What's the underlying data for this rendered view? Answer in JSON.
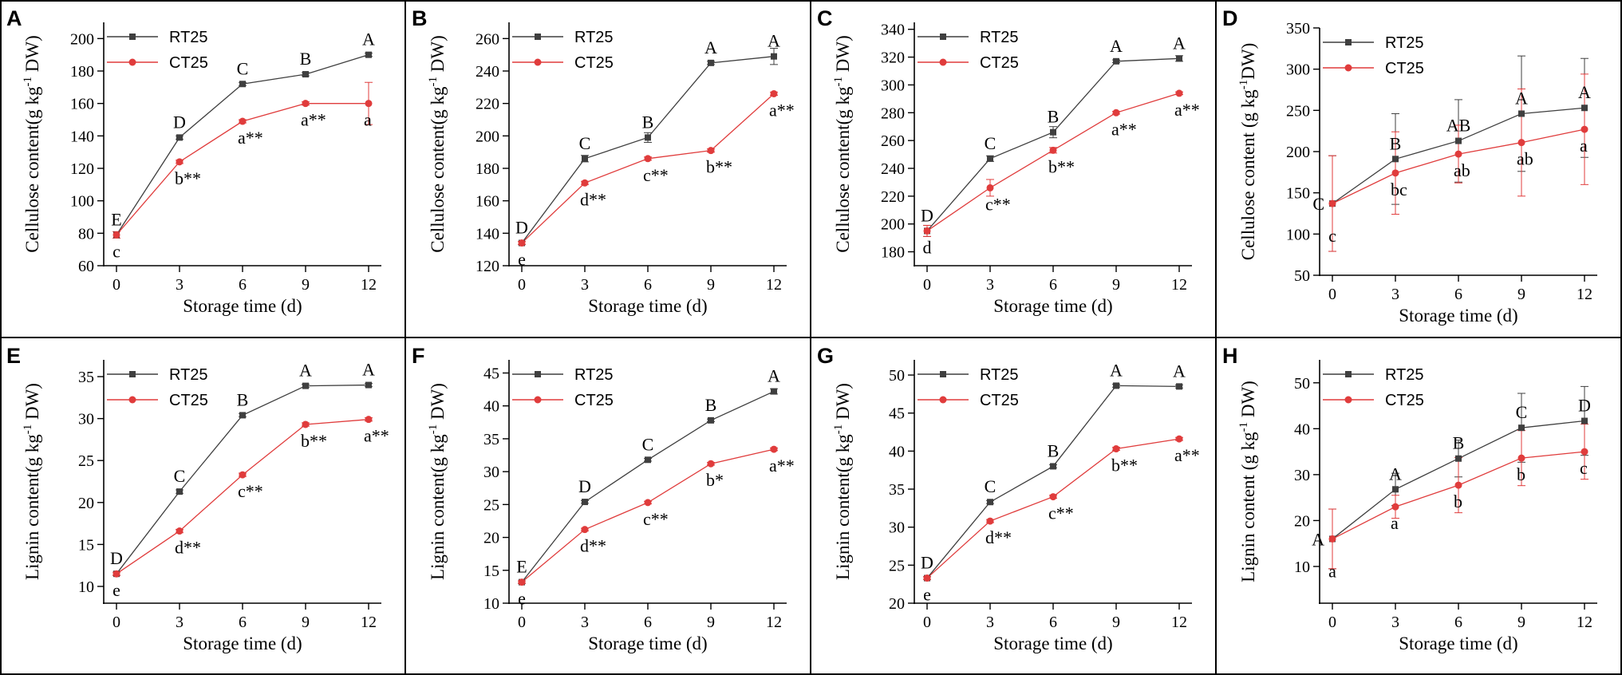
{
  "colors": {
    "rt": "#3f3f3f",
    "ct": "#e03c3c",
    "frame": "#000000"
  },
  "chart_data": [
    {
      "panel": "A",
      "type": "line",
      "xlabel": "Storage time (d)",
      "ylabel_main": "Cellulose content(g kg",
      "ylabel_sup": "-1",
      "ylabel_end": " DW)",
      "x": [
        0,
        3,
        6,
        9,
        12
      ],
      "ylim": [
        60,
        210
      ],
      "yticks": [
        60,
        80,
        100,
        120,
        140,
        160,
        180,
        200
      ],
      "legend": [
        "RT25",
        "CT25"
      ],
      "series": [
        {
          "name": "RT25",
          "values": [
            79,
            139,
            172,
            178,
            190
          ],
          "err": [
            0,
            1,
            1,
            1,
            1
          ],
          "labels": [
            "E",
            "D",
            "C",
            "B",
            "A"
          ]
        },
        {
          "name": "CT25",
          "values": [
            79,
            124,
            149,
            160,
            160
          ],
          "err": [
            2,
            1,
            1,
            1,
            13
          ],
          "labels": [
            "c",
            "b**",
            "a**",
            "a**",
            "a"
          ]
        }
      ]
    },
    {
      "panel": "B",
      "type": "line",
      "xlabel": "Storage time (d)",
      "ylabel_main": "Cellulose content(g kg",
      "ylabel_sup": "-1",
      "ylabel_end": " DW)",
      "x": [
        0,
        3,
        6,
        9,
        12
      ],
      "ylim": [
        120,
        270
      ],
      "yticks": [
        120,
        140,
        160,
        180,
        200,
        220,
        240,
        260
      ],
      "legend": [
        "RT25",
        "CT25"
      ],
      "series": [
        {
          "name": "RT25",
          "values": [
            134,
            186,
            199,
            245,
            249
          ],
          "err": [
            1,
            2,
            3,
            1,
            5
          ],
          "labels": [
            "D",
            "C",
            "B",
            "A",
            "A"
          ]
        },
        {
          "name": "CT25",
          "values": [
            134,
            171,
            186,
            191,
            226
          ],
          "err": [
            1,
            1,
            1,
            1,
            1
          ],
          "labels": [
            "e",
            "d**",
            "c**",
            "b**",
            "a**"
          ]
        }
      ]
    },
    {
      "panel": "C",
      "type": "line",
      "xlabel": "Storage time (d)",
      "ylabel_main": "Cellulose content(g kg",
      "ylabel_sup": "-1",
      "ylabel_end": " DW)",
      "x": [
        0,
        3,
        6,
        9,
        12
      ],
      "ylim": [
        170,
        345
      ],
      "yticks": [
        180,
        200,
        220,
        240,
        260,
        280,
        300,
        320,
        340
      ],
      "legend": [
        "RT25",
        "CT25"
      ],
      "series": [
        {
          "name": "RT25",
          "values": [
            195,
            247,
            266,
            317,
            319
          ],
          "err": [
            4,
            2,
            4,
            1,
            2
          ],
          "labels": [
            "D",
            "C",
            "B",
            "A",
            "A"
          ]
        },
        {
          "name": "CT25",
          "values": [
            195,
            226,
            253,
            280,
            294
          ],
          "err": [
            4,
            6,
            2,
            1,
            1
          ],
          "labels": [
            "d",
            "c**",
            "b**",
            "a**",
            "a**"
          ]
        }
      ]
    },
    {
      "panel": "D",
      "type": "line",
      "xlabel": "Storage time (d)",
      "ylabel_main": "Cellulose content (g kg",
      "ylabel_sup": "-1",
      "ylabel_end": "DW)",
      "x": [
        0,
        3,
        6,
        9,
        12
      ],
      "ylim": [
        50,
        350
      ],
      "yticks": [
        50,
        100,
        150,
        200,
        250,
        300,
        350
      ],
      "legend": [
        "RT25",
        "CT25"
      ],
      "series": [
        {
          "name": "RT25",
          "values": [
            137,
            191,
            213,
            246,
            253
          ],
          "err": [
            58,
            55,
            50,
            70,
            60
          ],
          "labels": [
            "C",
            "B",
            "AB",
            "A",
            "A"
          ]
        },
        {
          "name": "CT25",
          "values": [
            137,
            174,
            197,
            211,
            227
          ],
          "err": [
            58,
            50,
            35,
            65,
            67
          ],
          "labels": [
            "c",
            "bc",
            "ab",
            "ab",
            "a"
          ]
        }
      ]
    },
    {
      "panel": "E",
      "type": "line",
      "xlabel": "Storage time (d)",
      "ylabel_main": "Lignin content(g kg",
      "ylabel_sup": "-1",
      "ylabel_end": " DW)",
      "x": [
        0,
        3,
        6,
        9,
        12
      ],
      "ylim": [
        8,
        37
      ],
      "yticks": [
        10,
        15,
        20,
        25,
        30,
        35
      ],
      "legend": [
        "RT25",
        "CT25"
      ],
      "series": [
        {
          "name": "RT25",
          "values": [
            11.5,
            21.3,
            30.4,
            33.9,
            34.0
          ],
          "err": [
            0.2,
            0.2,
            0.2,
            0.2,
            0.2
          ],
          "labels": [
            "D",
            "C",
            "B",
            "A",
            "A"
          ]
        },
        {
          "name": "CT25",
          "values": [
            11.5,
            16.6,
            23.3,
            29.3,
            29.9
          ],
          "err": [
            0.2,
            0.2,
            0.2,
            0.2,
            0.2
          ],
          "labels": [
            "e",
            "d**",
            "c**",
            "b**",
            "a**"
          ]
        }
      ]
    },
    {
      "panel": "F",
      "type": "line",
      "xlabel": "Storage time (d)",
      "ylabel_main": "Lignin content(g kg",
      "ylabel_sup": "-1",
      "ylabel_end": " DW)",
      "x": [
        0,
        3,
        6,
        9,
        12
      ],
      "ylim": [
        10,
        47
      ],
      "yticks": [
        10,
        15,
        20,
        25,
        30,
        35,
        40,
        45
      ],
      "legend": [
        "RT25",
        "CT25"
      ],
      "series": [
        {
          "name": "RT25",
          "values": [
            13.2,
            25.4,
            31.8,
            37.8,
            42.2
          ],
          "err": [
            0.2,
            0.2,
            0.2,
            0.2,
            0.4
          ],
          "labels": [
            "E",
            "D",
            "C",
            "B",
            "A"
          ]
        },
        {
          "name": "CT25",
          "values": [
            13.2,
            21.2,
            25.3,
            31.2,
            33.4
          ],
          "err": [
            0.2,
            0.2,
            0.2,
            0.2,
            0.2
          ],
          "labels": [
            "e",
            "d**",
            "c**",
            "b*",
            "a**"
          ]
        }
      ]
    },
    {
      "panel": "G",
      "type": "line",
      "xlabel": "Storage time (d)",
      "ylabel_main": "Lignin content(g kg",
      "ylabel_sup": "-1",
      "ylabel_end": " DW)",
      "x": [
        0,
        3,
        6,
        9,
        12
      ],
      "ylim": [
        20,
        52
      ],
      "yticks": [
        20,
        25,
        30,
        35,
        40,
        45,
        50
      ],
      "legend": [
        "RT25",
        "CT25"
      ],
      "series": [
        {
          "name": "RT25",
          "values": [
            23.3,
            33.3,
            38.0,
            48.6,
            48.5
          ],
          "err": [
            0.2,
            0.2,
            0.2,
            0.2,
            0.2
          ],
          "labels": [
            "D",
            "C",
            "B",
            "A",
            "A"
          ]
        },
        {
          "name": "CT25",
          "values": [
            23.3,
            30.8,
            34.0,
            40.3,
            41.6
          ],
          "err": [
            0.2,
            0.2,
            0.2,
            0.2,
            0.2
          ],
          "labels": [
            "e",
            "d**",
            "c**",
            "b**",
            "a**"
          ]
        }
      ]
    },
    {
      "panel": "H",
      "type": "line",
      "xlabel": "Storage time (d)",
      "ylabel_main": "Lignin content (g kg",
      "ylabel_sup": "-1",
      "ylabel_end": " DW)",
      "x": [
        0,
        3,
        6,
        9,
        12
      ],
      "ylim": [
        2,
        55
      ],
      "yticks": [
        10,
        20,
        30,
        40,
        50
      ],
      "legend": [
        "RT25",
        "CT25"
      ],
      "series": [
        {
          "name": "RT25",
          "values": [
            16,
            26.8,
            33.5,
            40.2,
            41.7
          ],
          "err": [
            6.5,
            3.5,
            4,
            7.5,
            7.5
          ],
          "labels": [
            "A",
            "A",
            "B",
            "C",
            "D"
          ]
        },
        {
          "name": "CT25",
          "values": [
            16,
            23,
            27.7,
            33.6,
            35
          ],
          "err": [
            6.5,
            2.5,
            6,
            6,
            6
          ],
          "labels": [
            "a",
            "a",
            "b",
            "b",
            "c"
          ]
        }
      ]
    }
  ]
}
